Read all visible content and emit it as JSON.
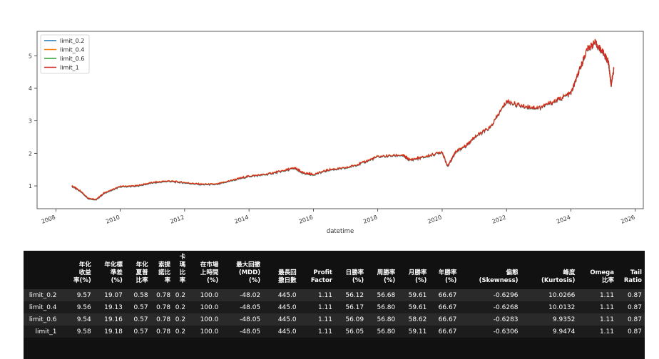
{
  "chart_data": {
    "type": "line",
    "xlabel": "datetime",
    "ylabel": "",
    "xlim": [
      "2007-06-01",
      "2026-03-31"
    ],
    "ylim": [
      0.3,
      5.75
    ],
    "x_ticks": [
      "2008",
      "2010",
      "2012",
      "2014",
      "2016",
      "2018",
      "2020",
      "2022",
      "2024",
      "2026"
    ],
    "y_ticks": [
      1,
      2,
      3,
      4,
      5
    ],
    "legend_position": "top-left",
    "grid": false,
    "series": [
      {
        "name": "limit_0.2",
        "color": "#1f77b4"
      },
      {
        "name": "limit_0.4",
        "color": "#ff7f0e"
      },
      {
        "name": "limit_0.6",
        "color": "#2ca02c"
      },
      {
        "name": "limit_1",
        "color": "#d62728"
      }
    ],
    "x": [
      "2008-07",
      "2008-10",
      "2009-01",
      "2009-04",
      "2009-07",
      "2010-01",
      "2010-07",
      "2011-01",
      "2011-07",
      "2012-01",
      "2012-07",
      "2013-01",
      "2013-07",
      "2014-01",
      "2014-07",
      "2015-01",
      "2015-06",
      "2015-09",
      "2016-01",
      "2016-07",
      "2017-01",
      "2017-07",
      "2018-01",
      "2018-10",
      "2019-01",
      "2019-07",
      "2020-01",
      "2020-03",
      "2020-06",
      "2020-10",
      "2021-01",
      "2021-07",
      "2022-01",
      "2022-07",
      "2023-01",
      "2023-07",
      "2024-01",
      "2024-04",
      "2024-07",
      "2024-10",
      "2025-01",
      "2025-03",
      "2025-04",
      "2025-05"
    ],
    "y": [
      1.0,
      0.85,
      0.62,
      0.58,
      0.78,
      0.98,
      1.0,
      1.1,
      1.15,
      1.1,
      1.05,
      1.05,
      1.18,
      1.3,
      1.35,
      1.45,
      1.55,
      1.4,
      1.35,
      1.5,
      1.55,
      1.7,
      1.9,
      1.95,
      1.8,
      1.9,
      2.05,
      1.6,
      2.05,
      2.25,
      2.5,
      2.8,
      3.6,
      3.45,
      3.4,
      3.6,
      3.85,
      4.5,
      5.2,
      5.4,
      5.1,
      4.8,
      4.1,
      4.6
    ]
  },
  "table": {
    "headers": [
      "",
      "年化\n收益\n率(%)",
      "年化標\n準差\n(%)",
      "年化\n夏普\n比率",
      "索提\n諾比\n率",
      "卡\n瑪\n比\n率",
      "在市場\n上時間\n(%)",
      "最大回撤\n(MDD)\n(%)",
      "最長回\n撤日數",
      "Profit\nFactor",
      "日勝率\n(%)",
      "周勝率\n(%)",
      "月勝率\n(%)",
      "年勝率\n(%)",
      "偏態\n(Skewness)",
      "峰度\n(Kurtosis)",
      "Omega\n比率",
      "Tail\nRatio"
    ],
    "rows": [
      [
        "limit_0.2",
        "9.57",
        "19.07",
        "0.58",
        "0.78",
        "0.2",
        "100.0",
        "-48.02",
        "445.0",
        "1.11",
        "56.12",
        "56.68",
        "59.61",
        "66.67",
        "-0.6296",
        "10.0266",
        "1.11",
        "0.87"
      ],
      [
        "limit_0.4",
        "9.56",
        "19.13",
        "0.57",
        "0.78",
        "0.2",
        "100.0",
        "-48.05",
        "445.0",
        "1.11",
        "56.17",
        "56.80",
        "59.61",
        "66.67",
        "-0.6268",
        "10.0132",
        "1.11",
        "0.87"
      ],
      [
        "limit_0.6",
        "9.54",
        "19.16",
        "0.57",
        "0.78",
        "0.2",
        "100.0",
        "-48.05",
        "445.0",
        "1.11",
        "56.09",
        "56.80",
        "58.62",
        "66.67",
        "-0.6283",
        "9.9352",
        "1.11",
        "0.87"
      ],
      [
        "limit_1",
        "9.58",
        "19.18",
        "0.57",
        "0.78",
        "0.2",
        "100.0",
        "-48.05",
        "445.0",
        "1.11",
        "56.05",
        "56.80",
        "59.11",
        "66.67",
        "-0.6306",
        "9.9474",
        "1.11",
        "0.87"
      ]
    ]
  }
}
